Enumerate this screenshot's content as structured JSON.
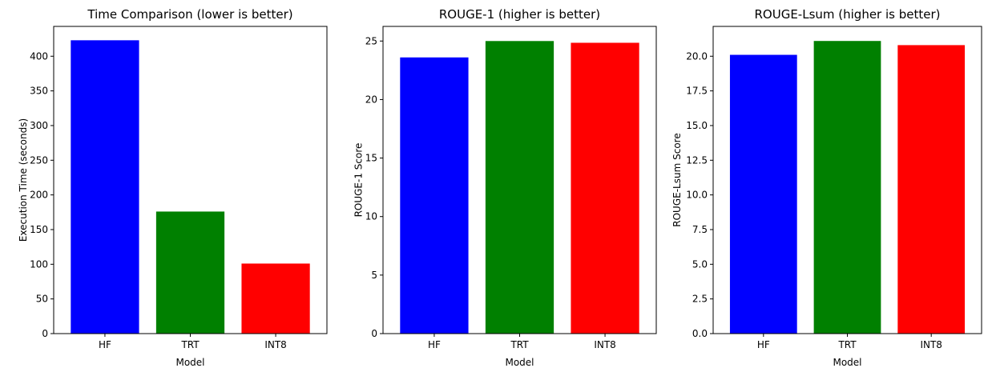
{
  "chart_data": [
    {
      "type": "bar",
      "title": "Time Comparison (lower is better)",
      "xlabel": "Model",
      "ylabel": "Execution Time (seconds)",
      "categories": [
        "HF",
        "TRT",
        "INT8"
      ],
      "values": [
        423,
        176,
        101
      ],
      "colors": [
        "#0000ff",
        "#008000",
        "#ff0000"
      ],
      "ylim": [
        0,
        443
      ],
      "yticks": [
        0,
        50,
        100,
        150,
        200,
        250,
        300,
        350,
        400
      ],
      "ytick_labels": [
        "0",
        "50",
        "100",
        "150",
        "200",
        "250",
        "300",
        "350",
        "400"
      ],
      "grid": false
    },
    {
      "type": "bar",
      "title": "ROUGE-1 (higher is better)",
      "xlabel": "Model",
      "ylabel": "ROUGE-1 Score",
      "categories": [
        "HF",
        "TRT",
        "INT8"
      ],
      "values": [
        23.6,
        25.0,
        24.85
      ],
      "colors": [
        "#0000ff",
        "#008000",
        "#ff0000"
      ],
      "ylim": [
        0,
        26.25
      ],
      "yticks": [
        0,
        5,
        10,
        15,
        20,
        25
      ],
      "ytick_labels": [
        "0",
        "5",
        "10",
        "15",
        "20",
        "25"
      ],
      "grid": false
    },
    {
      "type": "bar",
      "title": "ROUGE-Lsum (higher is better)",
      "xlabel": "Model",
      "ylabel": "ROUGE-Lsum Score",
      "categories": [
        "HF",
        "TRT",
        "INT8"
      ],
      "values": [
        20.1,
        21.1,
        20.8
      ],
      "colors": [
        "#0000ff",
        "#008000",
        "#ff0000"
      ],
      "ylim": [
        0,
        22.15
      ],
      "yticks": [
        0,
        2.5,
        5,
        7.5,
        10,
        12.5,
        15,
        17.5,
        20
      ],
      "ytick_labels": [
        "0.0",
        "2.5",
        "5.0",
        "7.5",
        "10.0",
        "12.5",
        "15.0",
        "17.5",
        "20.0"
      ],
      "grid": false
    }
  ]
}
